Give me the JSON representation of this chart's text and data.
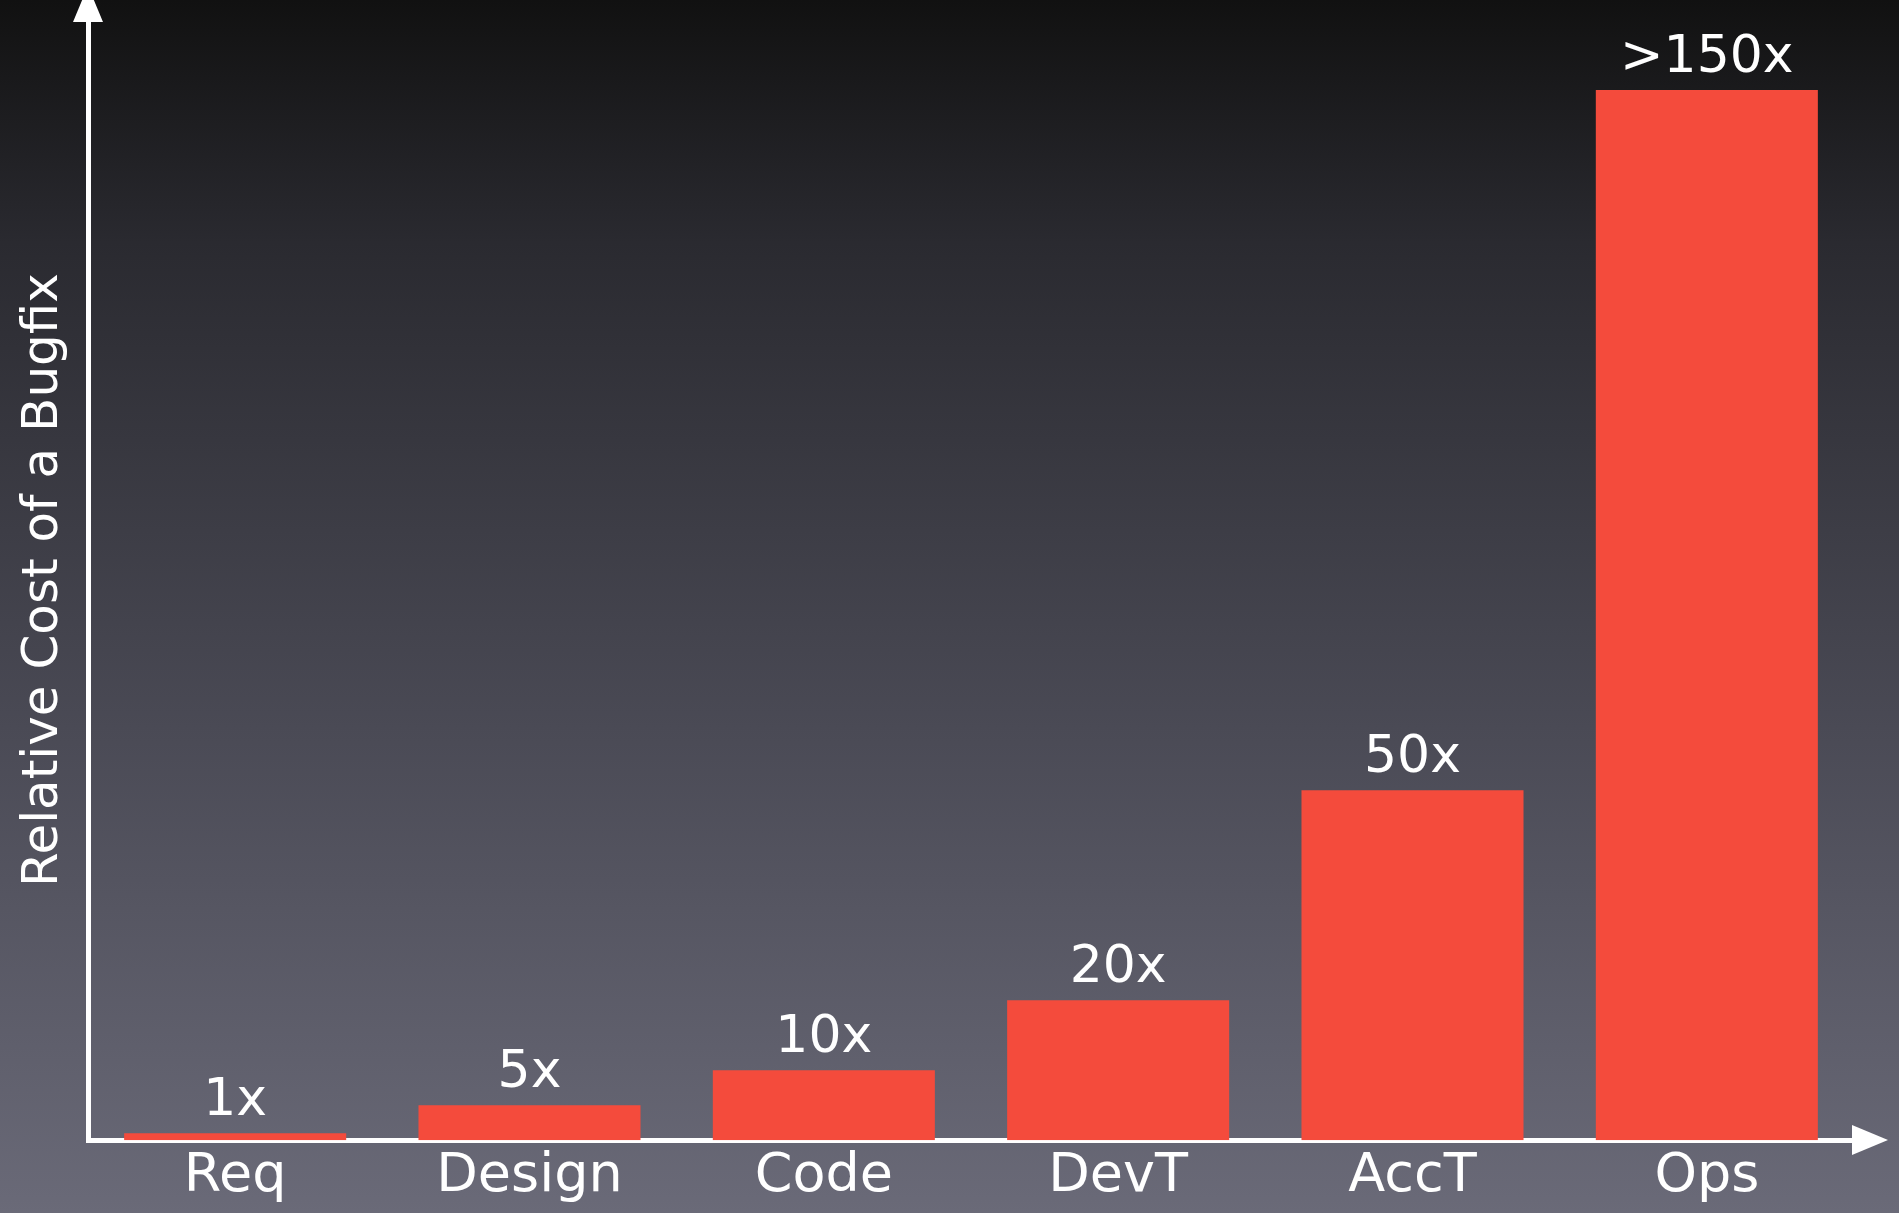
{
  "chart_data": {
    "type": "bar",
    "ylabel": "Relative Cost of a Bugfix",
    "categories": [
      "Req",
      "Design",
      "Code",
      "DevT",
      "AccT",
      "Ops"
    ],
    "values": [
      1,
      5,
      10,
      20,
      50,
      150
    ],
    "value_labels": [
      "1x",
      "5x",
      "10x",
      "20x",
      "50x",
      ">150x"
    ],
    "color": "#f44b3c",
    "grid": false,
    "legend": false
  }
}
